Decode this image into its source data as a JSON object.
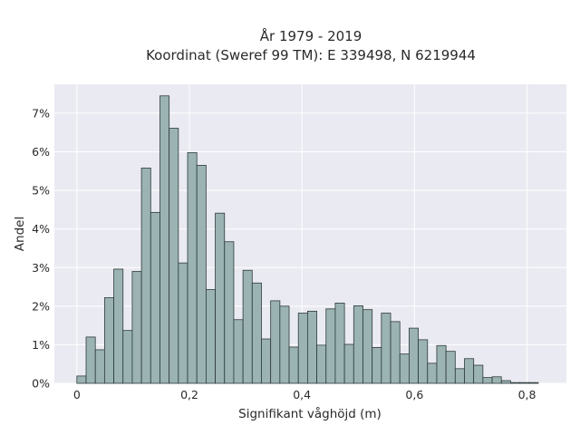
{
  "chart_data": {
    "type": "bar",
    "title_lines": [
      "År 1979 - 2019",
      "Koordinat (Sweref 99 TM): E 339498, N 6219944"
    ],
    "xlabel": "Signifikant våghöjd (m)",
    "ylabel": "Andel",
    "xlim": [
      -0.04,
      0.87
    ],
    "ylim": [
      0,
      0.0775
    ],
    "x_ticks": [
      0,
      0.2,
      0.4,
      0.6,
      0.8
    ],
    "x_tick_labels": [
      "0",
      "0,2",
      "0,4",
      "0,6",
      "0,8"
    ],
    "y_ticks": [
      0,
      0.01,
      0.02,
      0.03,
      0.04,
      0.05,
      0.06,
      0.07
    ],
    "y_tick_labels": [
      "0%",
      "1%",
      "2%",
      "3%",
      "4%",
      "5%",
      "6%",
      "7%"
    ],
    "bin_width": 0.0164,
    "bin_start": 0,
    "values": [
      0.0019,
      0.012,
      0.0087,
      0.0222,
      0.0296,
      0.0137,
      0.029,
      0.0558,
      0.0443,
      0.0745,
      0.0661,
      0.0312,
      0.0598,
      0.0565,
      0.0243,
      0.0441,
      0.0367,
      0.0165,
      0.0293,
      0.026,
      0.0115,
      0.0214,
      0.02,
      0.0094,
      0.0182,
      0.0187,
      0.0099,
      0.0193,
      0.0208,
      0.0101,
      0.0201,
      0.0191,
      0.0093,
      0.0182,
      0.016,
      0.0076,
      0.0143,
      0.0113,
      0.0052,
      0.0098,
      0.0083,
      0.0038,
      0.0064,
      0.0047,
      0.0015,
      0.0017,
      0.0007,
      0.0002,
      0.0002,
      0.0002
    ],
    "grid": true,
    "background": "#eaeaf2",
    "bar_color": "#9bb3b3",
    "bar_edge_color": "#2e3b3b"
  }
}
